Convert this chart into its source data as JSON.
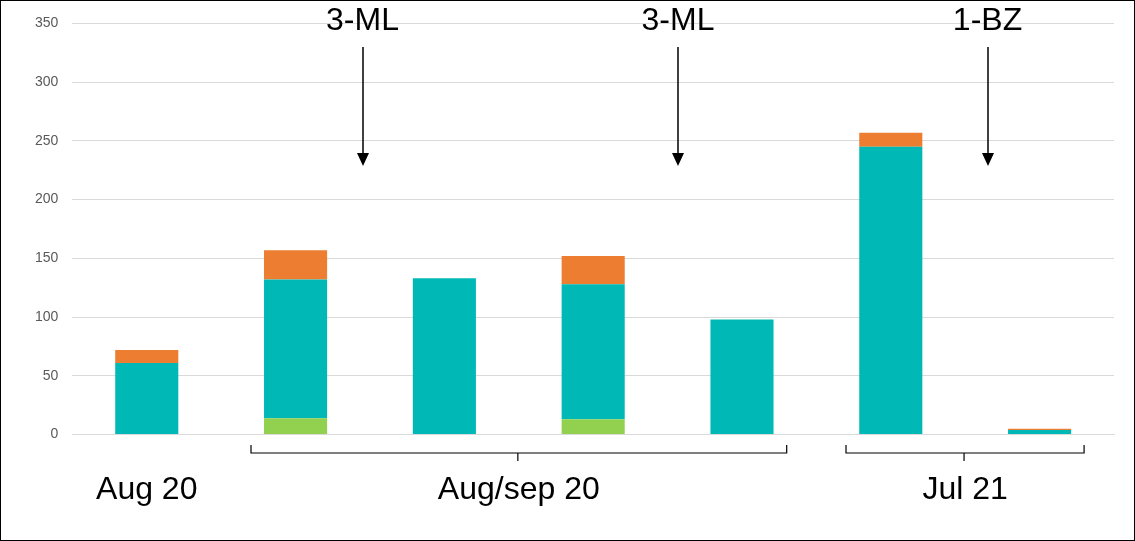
{
  "chart_data": {
    "type": "bar",
    "stacked": true,
    "categories": [
      null,
      null,
      null,
      null,
      null,
      null,
      null
    ],
    "series": [
      {
        "color": "#92d050",
        "values": [
          null,
          14,
          null,
          13,
          null,
          null,
          null
        ]
      },
      {
        "color": "#00b9b7",
        "values": [
          61,
          118,
          133,
          115,
          98,
          245,
          4
        ]
      },
      {
        "color": "#ed7d31",
        "values": [
          11,
          25,
          null,
          24,
          null,
          12,
          1
        ]
      }
    ],
    "ylim": [
      0,
      350
    ],
    "yticks": [
      0,
      50,
      100,
      150,
      200,
      250,
      300,
      350
    ],
    "grid": "y",
    "legend": false,
    "annotations": [
      "Aug 20",
      "Aug/sep 20",
      "Jul 21",
      "3-ML",
      "3-ML",
      "1-BZ"
    ]
  }
}
